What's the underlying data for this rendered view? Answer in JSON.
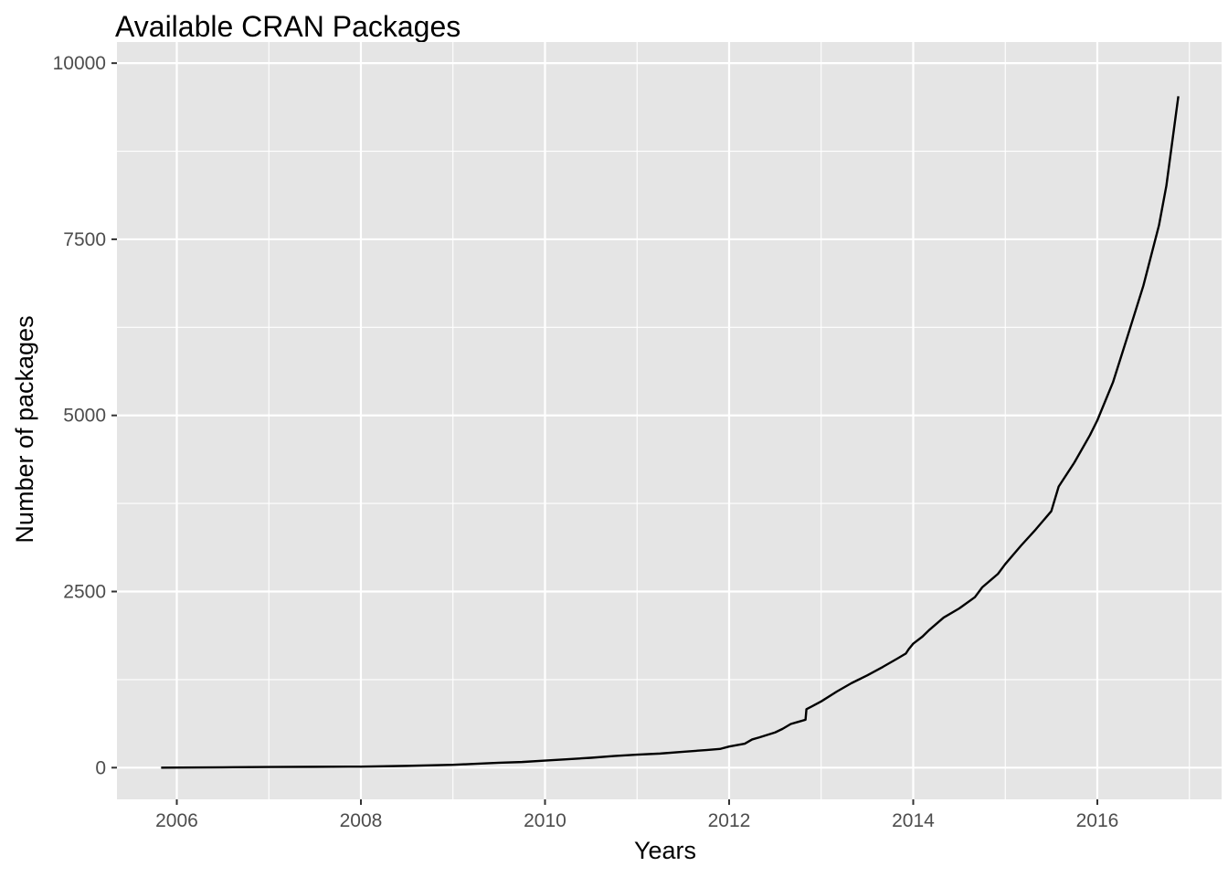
{
  "chart_data": {
    "type": "line",
    "title": "Available CRAN Packages",
    "xlabel": "Years",
    "ylabel": "Number of packages",
    "xlim": [
      2005.35,
      2017.35
    ],
    "ylim": [
      -450,
      10300
    ],
    "x_ticks": [
      2006,
      2008,
      2010,
      2012,
      2014,
      2016
    ],
    "x_tick_labels": [
      "2006",
      "2008",
      "2010",
      "2012",
      "2014",
      "2016"
    ],
    "x_minor_ticks": [
      2007,
      2009,
      2011,
      2013,
      2015,
      2017
    ],
    "y_ticks": [
      0,
      2500,
      5000,
      7500,
      10000
    ],
    "y_tick_labels": [
      "0",
      "2500",
      "5000",
      "7500",
      "10000"
    ],
    "y_minor_ticks": [
      1250,
      3750,
      6250,
      8750
    ],
    "grid": true,
    "legend": "none",
    "colors": {
      "panel": "#e5e5e5",
      "grid": "#ffffff",
      "line": "#000000",
      "tick_label": "#4d4d4d",
      "tick": "#333333"
    },
    "series": [
      {
        "x": [
          2005.83,
          2006.5,
          2007,
          2007.5,
          2008,
          2008.5,
          2009,
          2009.25,
          2009.5,
          2009.75,
          2010,
          2010.25,
          2010.5,
          2010.75,
          2011,
          2011.25,
          2011.5,
          2011.75,
          2011.9,
          2012,
          2012.17,
          2012.25,
          2012.33,
          2012.5,
          2012.58,
          2012.67,
          2012.75,
          2012.83,
          2012.84,
          2012.9,
          2013,
          2013.17,
          2013.33,
          2013.5,
          2013.67,
          2013.83,
          2013.92,
          2013.95,
          2014,
          2014.1,
          2014.17,
          2014.33,
          2014.5,
          2014.67,
          2014.75,
          2014.92,
          2015,
          2015.17,
          2015.33,
          2015.5,
          2015.58,
          2015.75,
          2015.92,
          2016,
          2016.17,
          2016.33,
          2016.5,
          2016.67,
          2016.75,
          2016.88
        ],
        "y": [
          0,
          5,
          10,
          12,
          15,
          25,
          40,
          55,
          70,
          80,
          100,
          120,
          140,
          165,
          185,
          200,
          225,
          250,
          265,
          300,
          340,
          400,
          430,
          500,
          550,
          620,
          650,
          680,
          830,
          870,
          940,
          1080,
          1200,
          1310,
          1430,
          1550,
          1620,
          1680,
          1760,
          1860,
          1950,
          2130,
          2260,
          2420,
          2560,
          2750,
          2890,
          3150,
          3380,
          3640,
          3990,
          4330,
          4720,
          4930,
          5470,
          6130,
          6840,
          7700,
          8260,
          9530
        ]
      }
    ]
  }
}
